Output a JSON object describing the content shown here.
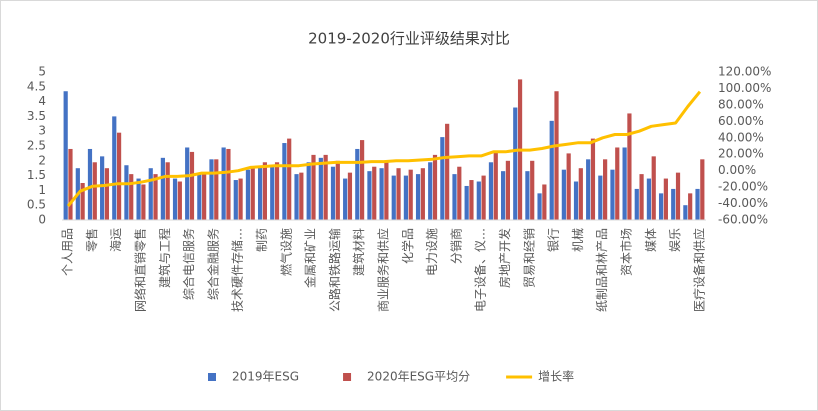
{
  "chart_data": {
    "type": "bar_line",
    "title": "2019-2020行业评级结果对比",
    "categories": [
      "个人用品",
      null,
      "零售",
      null,
      "海运",
      null,
      "网络和直销零售",
      null,
      "建筑与工程",
      null,
      "综合电信服务",
      null,
      "综合金融服务",
      null,
      "技术硬件存储…",
      null,
      "制药",
      null,
      "燃气设施",
      null,
      "金属和矿业",
      null,
      "公路和铁路运输",
      null,
      "建筑材料",
      null,
      "商业服务和供应",
      null,
      "化学品",
      null,
      "电力设施",
      null,
      "分销商",
      null,
      "电子设备、仪…",
      null,
      "房地产开发",
      null,
      "贸易和经销",
      null,
      "银行",
      null,
      "机械",
      null,
      "纸制品和林产品",
      null,
      "资本市场",
      null,
      "媒体",
      null,
      "娱乐",
      null,
      "医疗设备和供应"
    ],
    "series": [
      {
        "name": "2019年ESG",
        "color": "#4472c4",
        "values": [
          4.35,
          1.75,
          2.4,
          2.15,
          3.5,
          1.85,
          1.4,
          1.75,
          2.1,
          1.4,
          2.45,
          1.6,
          2.05,
          2.45,
          1.35,
          1.7,
          1.8,
          1.85,
          2.6,
          1.55,
          1.95,
          2.1,
          1.8,
          1.4,
          2.4,
          1.65,
          1.75,
          1.5,
          1.5,
          1.55,
          1.95,
          2.8,
          1.55,
          1.15,
          1.3,
          1.95,
          1.65,
          3.8,
          1.65,
          0.9,
          3.35,
          1.7,
          1.3,
          2.05,
          1.5,
          1.7,
          2.45,
          1.05,
          1.4,
          0.9,
          1.05,
          0.5,
          1.05
        ]
      },
      {
        "name": "2020年ESG平均分",
        "color": "#c0504d",
        "values": [
          2.4,
          1.25,
          1.95,
          1.75,
          2.95,
          1.55,
          1.2,
          1.55,
          1.95,
          1.3,
          2.3,
          1.55,
          2.05,
          2.4,
          1.4,
          1.8,
          1.95,
          1.95,
          2.75,
          1.6,
          2.2,
          2.2,
          2.0,
          1.6,
          2.7,
          1.8,
          1.95,
          1.75,
          1.7,
          1.75,
          2.2,
          3.25,
          1.8,
          1.35,
          1.5,
          2.3,
          2.0,
          4.75,
          2.0,
          1.2,
          4.35,
          2.25,
          1.75,
          2.75,
          2.05,
          2.45,
          3.6,
          1.55,
          2.15,
          1.4,
          1.6,
          0.9,
          2.05
        ]
      },
      {
        "name": "增长率",
        "color": "#ffc000",
        "axis": "y2",
        "values": [
          -43,
          -25,
          -19,
          -18,
          -16,
          -16,
          -14,
          -11,
          -7,
          -7,
          -6,
          -3,
          -3,
          -2,
          0,
          4,
          5,
          6,
          6,
          6,
          8,
          9,
          10,
          10,
          10,
          11,
          11,
          12,
          12,
          13,
          14,
          16,
          17,
          18,
          18,
          23,
          23,
          25,
          25,
          27,
          30,
          32,
          34,
          34,
          40,
          44,
          44,
          48,
          54,
          56,
          58,
          78,
          96
        ]
      }
    ],
    "ylim": [
      0,
      5
    ],
    "yticks": [
      0,
      0.5,
      1,
      1.5,
      2,
      2.5,
      3,
      3.5,
      4,
      4.5,
      5
    ],
    "y2lim": [
      -60,
      120
    ],
    "y2ticks": [
      {
        "value": -60,
        "label": "-60.00%"
      },
      {
        "value": -40,
        "label": "-40.00%"
      },
      {
        "value": -20,
        "label": "-20.00%"
      },
      {
        "value": 0,
        "label": "0.00%"
      },
      {
        "value": 20,
        "label": "20.00%"
      },
      {
        "value": 40,
        "label": "40.00%"
      },
      {
        "value": 60,
        "label": "60.00%"
      },
      {
        "value": 80,
        "label": "80.00%"
      },
      {
        "value": 100,
        "label": "100.00%"
      },
      {
        "value": 120,
        "label": "120.00%"
      }
    ],
    "legend": "bottom"
  }
}
